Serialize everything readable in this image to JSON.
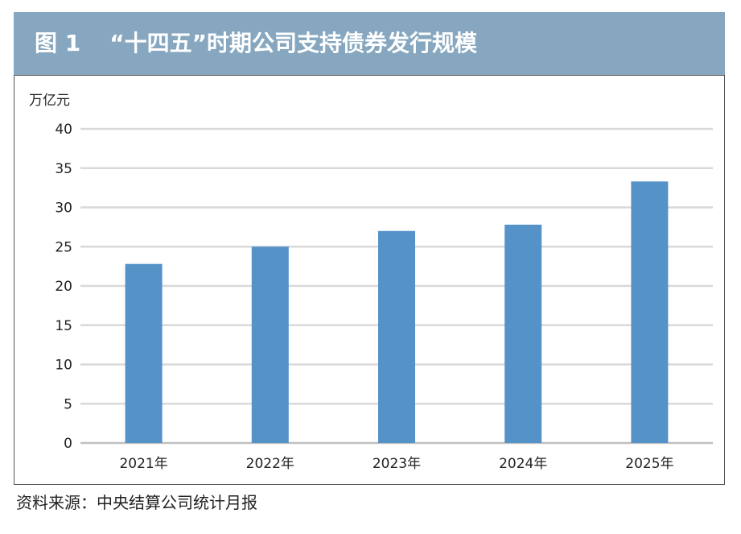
{
  "figure": {
    "label": "图 1",
    "title": "“十四五”时期公司支持债券发行规模",
    "source": "资料来源：中央结算公司统计月报"
  },
  "chart_data": {
    "type": "bar",
    "ylabel": "万亿元",
    "categories": [
      "2021年",
      "2022年",
      "2023年",
      "2024年",
      "2025年"
    ],
    "values": [
      22.8,
      25.0,
      27.0,
      27.8,
      33.3
    ],
    "ylim": [
      0,
      40
    ],
    "yticks": [
      0,
      5,
      10,
      15,
      20,
      25,
      30,
      35,
      40
    ],
    "grid": true,
    "legend": "none",
    "bar_color": "#5592c8",
    "grid_color": "#d9d9d9"
  }
}
